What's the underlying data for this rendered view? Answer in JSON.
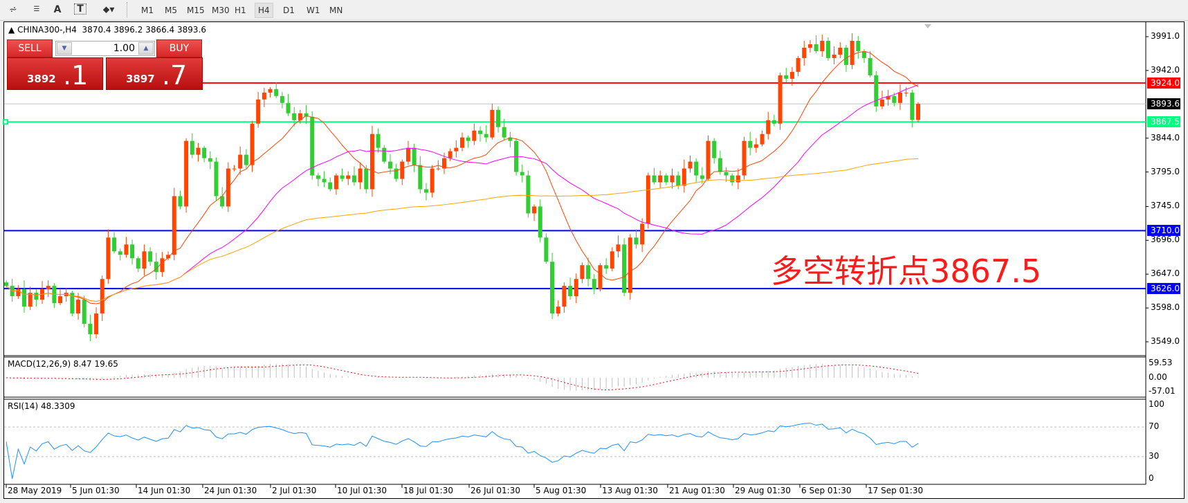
{
  "toolbar": {
    "icons": [
      "elliott-wave-icon",
      "fibonacci-fan-icon",
      "text-label-icon",
      "text-box-icon",
      "arrows-dropdown-icon"
    ],
    "text_icon": "A",
    "text_box_icon": "T",
    "timeframes": [
      "M1",
      "M5",
      "M15",
      "M30",
      "H1",
      "H4",
      "D1",
      "W1",
      "MN"
    ],
    "selected_timeframe": "H4"
  },
  "header": {
    "symbol": "CHINA300-,H4",
    "open": "3870.4",
    "high": "3896.2",
    "low": "3866.4",
    "close": "3893.6"
  },
  "trade_panel": {
    "sell_label": "SELL",
    "buy_label": "BUY",
    "lot": "1.00",
    "sell_small": "3892",
    "sell_big": ".1",
    "buy_small": "3897",
    "buy_big": ".7"
  },
  "price_axis": {
    "ticks": [
      "3991.0",
      "3942.0",
      "3844.0",
      "3795.0",
      "3745.0",
      "3696.0",
      "3647.0",
      "3598.0",
      "3549.0"
    ]
  },
  "levels": [
    {
      "label": "3924.0",
      "value": 3924.0,
      "color": "#ff0000"
    },
    {
      "label": "3893.6",
      "value": 3893.6,
      "color": "#000000",
      "line": "#c0c0c0"
    },
    {
      "label": "3867.5",
      "value": 3867.5,
      "color": "#00ff7f"
    },
    {
      "label": "3710.0",
      "value": 3710.0,
      "color": "#0000ff"
    },
    {
      "label": "3626.0",
      "value": 3626.0,
      "color": "#0000ff"
    }
  ],
  "annotation": "多空转折点3867.5",
  "macd": {
    "label": "MACD(12,26,9) 8.47 19.65",
    "ticks": [
      "59.53",
      "0.00",
      "-57.01"
    ]
  },
  "rsi": {
    "label": "RSI(14) 48.3309",
    "ticks": [
      "100",
      "70",
      "30",
      "0"
    ]
  },
  "time_axis": [
    "28 May 2019",
    "5 Jun 01:30",
    "14 Jun 01:30",
    "24 Jun 01:30",
    "2 Jul 01:30",
    "10 Jul 01:30",
    "18 Jul 01:30",
    "26 Jul 01:30",
    "5 Aug 01:30",
    "13 Aug 01:30",
    "21 Aug 01:30",
    "29 Aug 01:30",
    "6 Sep 01:30",
    "17 Sep 01:30"
  ],
  "chart_data": {
    "type": "candlestick",
    "bull_color": "#ff4500",
    "bear_color": "#32cd32",
    "ylim": [
      3549,
      3991
    ],
    "closes": [
      3630,
      3615,
      3625,
      3600,
      3620,
      3610,
      3625,
      3630,
      3605,
      3615,
      3620,
      3590,
      3610,
      3575,
      3560,
      3590,
      3640,
      3700,
      3680,
      3675,
      3690,
      3670,
      3655,
      3680,
      3665,
      3650,
      3670,
      3675,
      3760,
      3745,
      3840,
      3820,
      3830,
      3815,
      3810,
      3760,
      3745,
      3800,
      3800,
      3820,
      3805,
      3865,
      3900,
      3910,
      3915,
      3905,
      3895,
      3880,
      3870,
      3880,
      3875,
      3790,
      3785,
      3780,
      3770,
      3790,
      3785,
      3790,
      3780,
      3800,
      3770,
      3850,
      3830,
      3810,
      3800,
      3785,
      3810,
      3830,
      3805,
      3770,
      3765,
      3800,
      3800,
      3815,
      3825,
      3830,
      3845,
      3840,
      3855,
      3850,
      3845,
      3885,
      3860,
      3845,
      3840,
      3795,
      3790,
      3735,
      3745,
      3700,
      3665,
      3590,
      3600,
      3630,
      3615,
      3640,
      3660,
      3640,
      3625,
      3660,
      3655,
      3680,
      3690,
      3620,
      3700,
      3690,
      3720,
      3790,
      3780,
      3790,
      3780,
      3790,
      3775,
      3800,
      3810,
      3790,
      3785,
      3840,
      3815,
      3795,
      3790,
      3780,
      3790,
      3840,
      3830,
      3835,
      3850,
      3870,
      3865,
      3935,
      3930,
      3940,
      3960,
      3975,
      3980,
      3970,
      3985,
      3960,
      3965,
      3975,
      3950,
      3985,
      3970,
      3960,
      3935,
      3890,
      3900,
      3905,
      3895,
      3910,
      3910,
      3870.4,
      3893.6
    ]
  }
}
